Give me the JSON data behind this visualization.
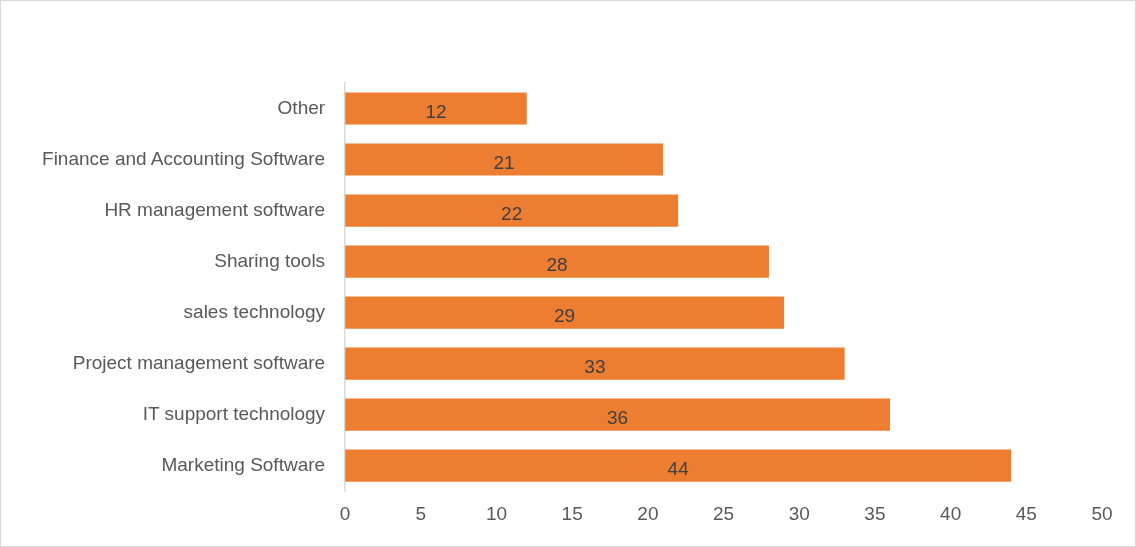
{
  "chart_data": {
    "type": "bar",
    "orientation": "horizontal",
    "categories": [
      "Other",
      "Finance and Accounting Software",
      "HR management software",
      "Sharing tools",
      "sales technology",
      "Project management software",
      "IT support technology",
      "Marketing Software"
    ],
    "values": [
      12,
      21,
      22,
      28,
      29,
      33,
      36,
      44
    ],
    "color": "#ed7d31",
    "xlim": [
      0,
      50
    ],
    "xticks": [
      0,
      5,
      10,
      15,
      20,
      25,
      30,
      35,
      40,
      45,
      50
    ],
    "grid": false,
    "legend": false,
    "data_labels": true
  }
}
